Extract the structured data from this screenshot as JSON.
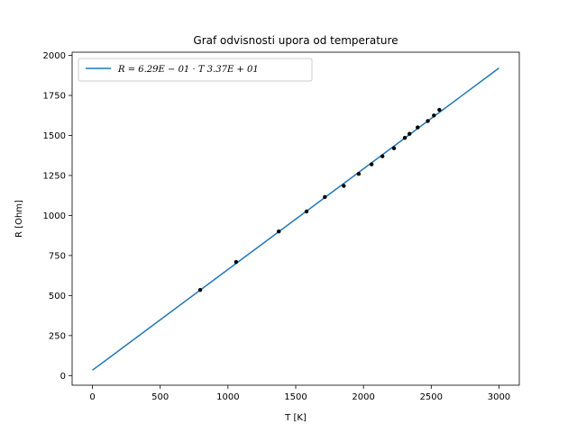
{
  "chart_data": {
    "type": "scatter",
    "title": "Graf odvisnosti upora od temperature",
    "xlabel": "T [K]",
    "ylabel": "R [Ohm]",
    "xlim": [
      -150,
      3150
    ],
    "ylim": [
      -60,
      2020
    ],
    "xticks": [
      0,
      500,
      1000,
      1500,
      2000,
      2500,
      3000
    ],
    "yticks": [
      0,
      250,
      500,
      750,
      1000,
      1250,
      1500,
      1750,
      2000
    ],
    "grid": false,
    "legend_position": "upper-left",
    "fit_line": {
      "label": "R = 6.29E − 01 · T   3.37E + 01",
      "color": "#1f77b4",
      "x": [
        0,
        3000
      ],
      "y": [
        33.7,
        1920.7
      ]
    },
    "points": {
      "color": "#000000",
      "x": [
        795,
        1060,
        1375,
        1580,
        1715,
        1855,
        1965,
        2060,
        2140,
        2225,
        2305,
        2340,
        2400,
        2475,
        2520,
        2560
      ],
      "y": [
        535,
        710,
        900,
        1025,
        1115,
        1185,
        1260,
        1320,
        1370,
        1420,
        1485,
        1510,
        1550,
        1590,
        1625,
        1660
      ]
    }
  }
}
